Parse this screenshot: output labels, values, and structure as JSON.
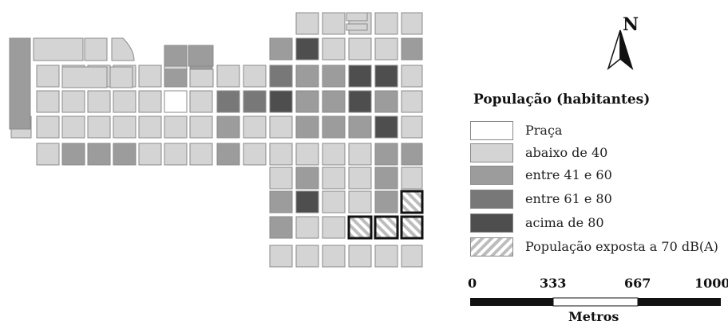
{
  "colors": {
    "praca": "#ffffff",
    "abaixo_40": "#d4d4d4",
    "entre_41_60": "#9c9c9c",
    "entre_61_80": "#787878",
    "acima_80": "#4e4e4e",
    "block_stroke": "#8a8a8a"
  },
  "north_arrow": {
    "label": "N",
    "icon": "north-arrow-icon"
  },
  "legend": {
    "title": "População (habitantes)",
    "items": [
      {
        "label": "Praça",
        "color": "#ffffff",
        "pattern": false
      },
      {
        "label": "abaixo de 40",
        "color": "#d4d4d4",
        "pattern": false
      },
      {
        "label": "entre 41 e 60",
        "color": "#9c9c9c",
        "pattern": false
      },
      {
        "label": "entre 61 e 80",
        "color": "#787878",
        "pattern": false
      },
      {
        "label": "acima de 80",
        "color": "#4e4e4e",
        "pattern": false
      },
      {
        "label": "População exposta a 70 dB(A)",
        "color": "#bdbdbd",
        "pattern": true
      }
    ]
  },
  "scale_bar": {
    "ticks": [
      "0",
      "333",
      "667",
      "1000"
    ],
    "units": "Metros"
  }
}
